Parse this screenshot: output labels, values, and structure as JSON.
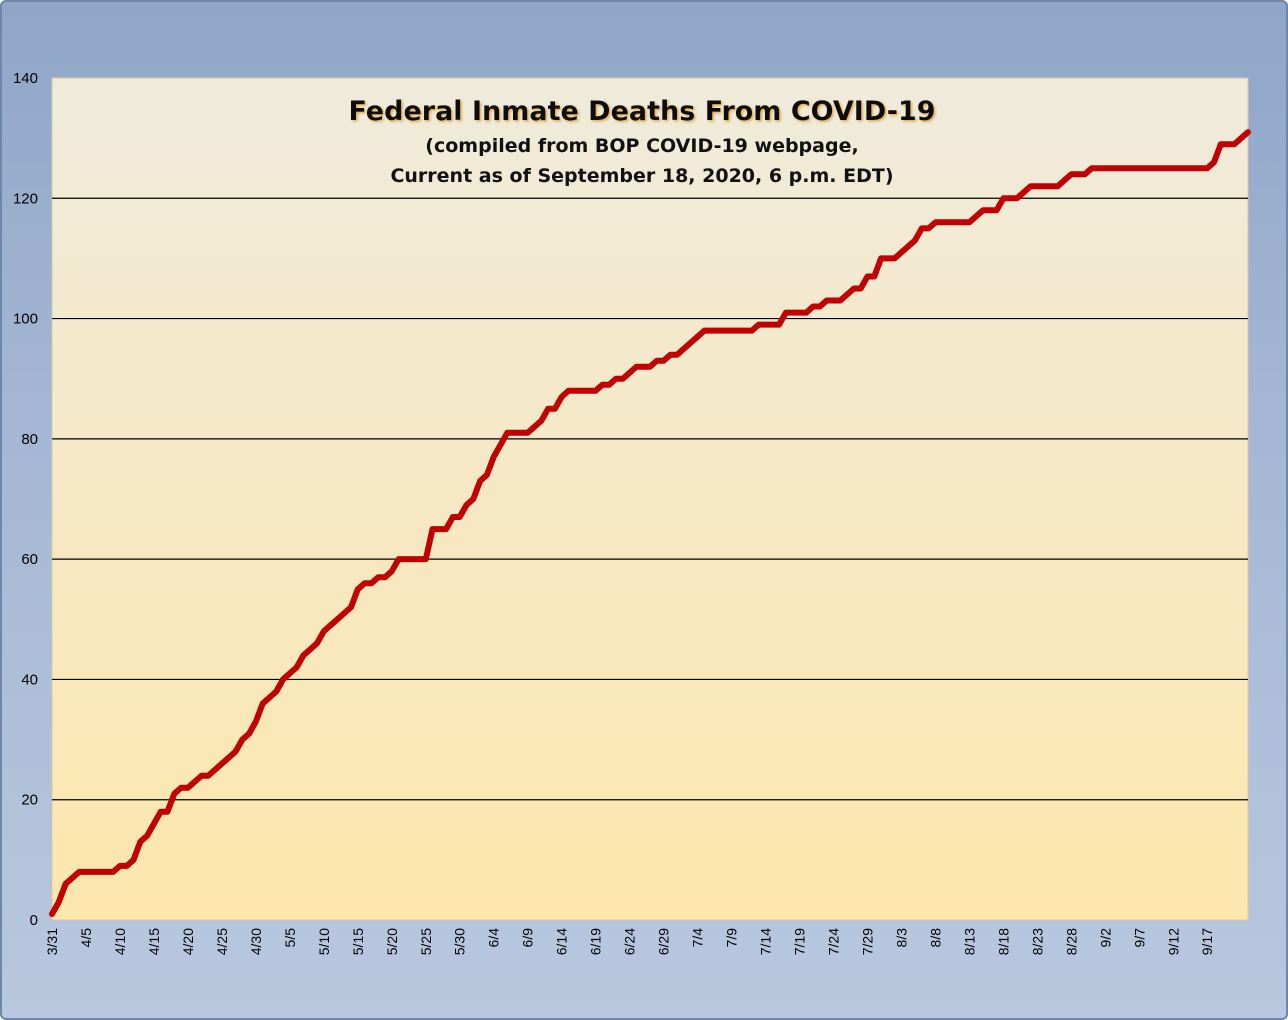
{
  "chart_data": {
    "type": "line",
    "title": "Federal Inmate Deaths From COVID-19",
    "subtitle_lines": [
      "(compiled from BOP COVID-19 webpage,",
      "Current as of September 18, 2020, 6 p.m. EDT)"
    ],
    "xlabel": "",
    "ylabel": "",
    "ylim": [
      0,
      140
    ],
    "yticks": [
      0,
      20,
      40,
      60,
      80,
      100,
      120,
      140
    ],
    "grid": true,
    "legend": "none",
    "line_color": "#c00000",
    "plot_bg_top": "#efeadb",
    "plot_bg_bottom": "#fde7ad",
    "frame_color": "#9db0cf",
    "x_tick_labels": [
      "3/31",
      "4/5",
      "4/10",
      "4/15",
      "4/20",
      "4/25",
      "4/30",
      "5/5",
      "5/10",
      "5/15",
      "5/20",
      "5/25",
      "5/30",
      "6/4",
      "6/9",
      "6/14",
      "6/19",
      "6/24",
      "6/29",
      "7/4",
      "7/9",
      "7/14",
      "7/19",
      "7/24",
      "7/29",
      "8/3",
      "8/8",
      "8/13",
      "8/18",
      "8/23",
      "8/28",
      "9/2",
      "9/7",
      "9/12",
      "9/17"
    ],
    "series": [
      {
        "start_date": "3/31",
        "x_step_days": 1,
        "values": [
          1,
          3,
          6,
          7,
          8,
          8,
          8,
          8,
          8,
          8,
          9,
          9,
          10,
          13,
          14,
          16,
          18,
          18,
          21,
          22,
          22,
          23,
          24,
          24,
          25,
          26,
          27,
          28,
          30,
          31,
          33,
          36,
          37,
          38,
          40,
          41,
          42,
          44,
          45,
          46,
          48,
          49,
          50,
          51,
          52,
          55,
          56,
          56,
          57,
          57,
          58,
          60,
          60,
          60,
          60,
          60,
          65,
          65,
          65,
          67,
          67,
          69,
          70,
          73,
          74,
          77,
          79,
          81,
          81,
          81,
          81,
          82,
          83,
          85,
          85,
          87,
          88,
          88,
          88,
          88,
          88,
          89,
          89,
          90,
          90,
          91,
          92,
          92,
          92,
          93,
          93,
          94,
          94,
          95,
          96,
          97,
          98,
          98,
          98,
          98,
          98,
          98,
          98,
          98,
          99,
          99,
          99,
          99,
          101,
          101,
          101,
          101,
          102,
          102,
          103,
          103,
          103,
          104,
          105,
          105,
          107,
          107,
          110,
          110,
          110,
          111,
          112,
          113,
          115,
          115,
          116,
          116,
          116,
          116,
          116,
          116,
          117,
          118,
          118,
          118,
          120,
          120,
          120,
          121,
          122,
          122,
          122,
          122,
          122,
          123,
          124,
          124,
          124,
          125,
          125,
          125,
          125,
          125,
          125,
          125,
          125,
          125,
          125,
          125,
          125,
          125,
          125,
          125,
          125,
          125,
          125,
          126,
          129,
          129,
          129,
          130,
          131
        ]
      }
    ]
  }
}
